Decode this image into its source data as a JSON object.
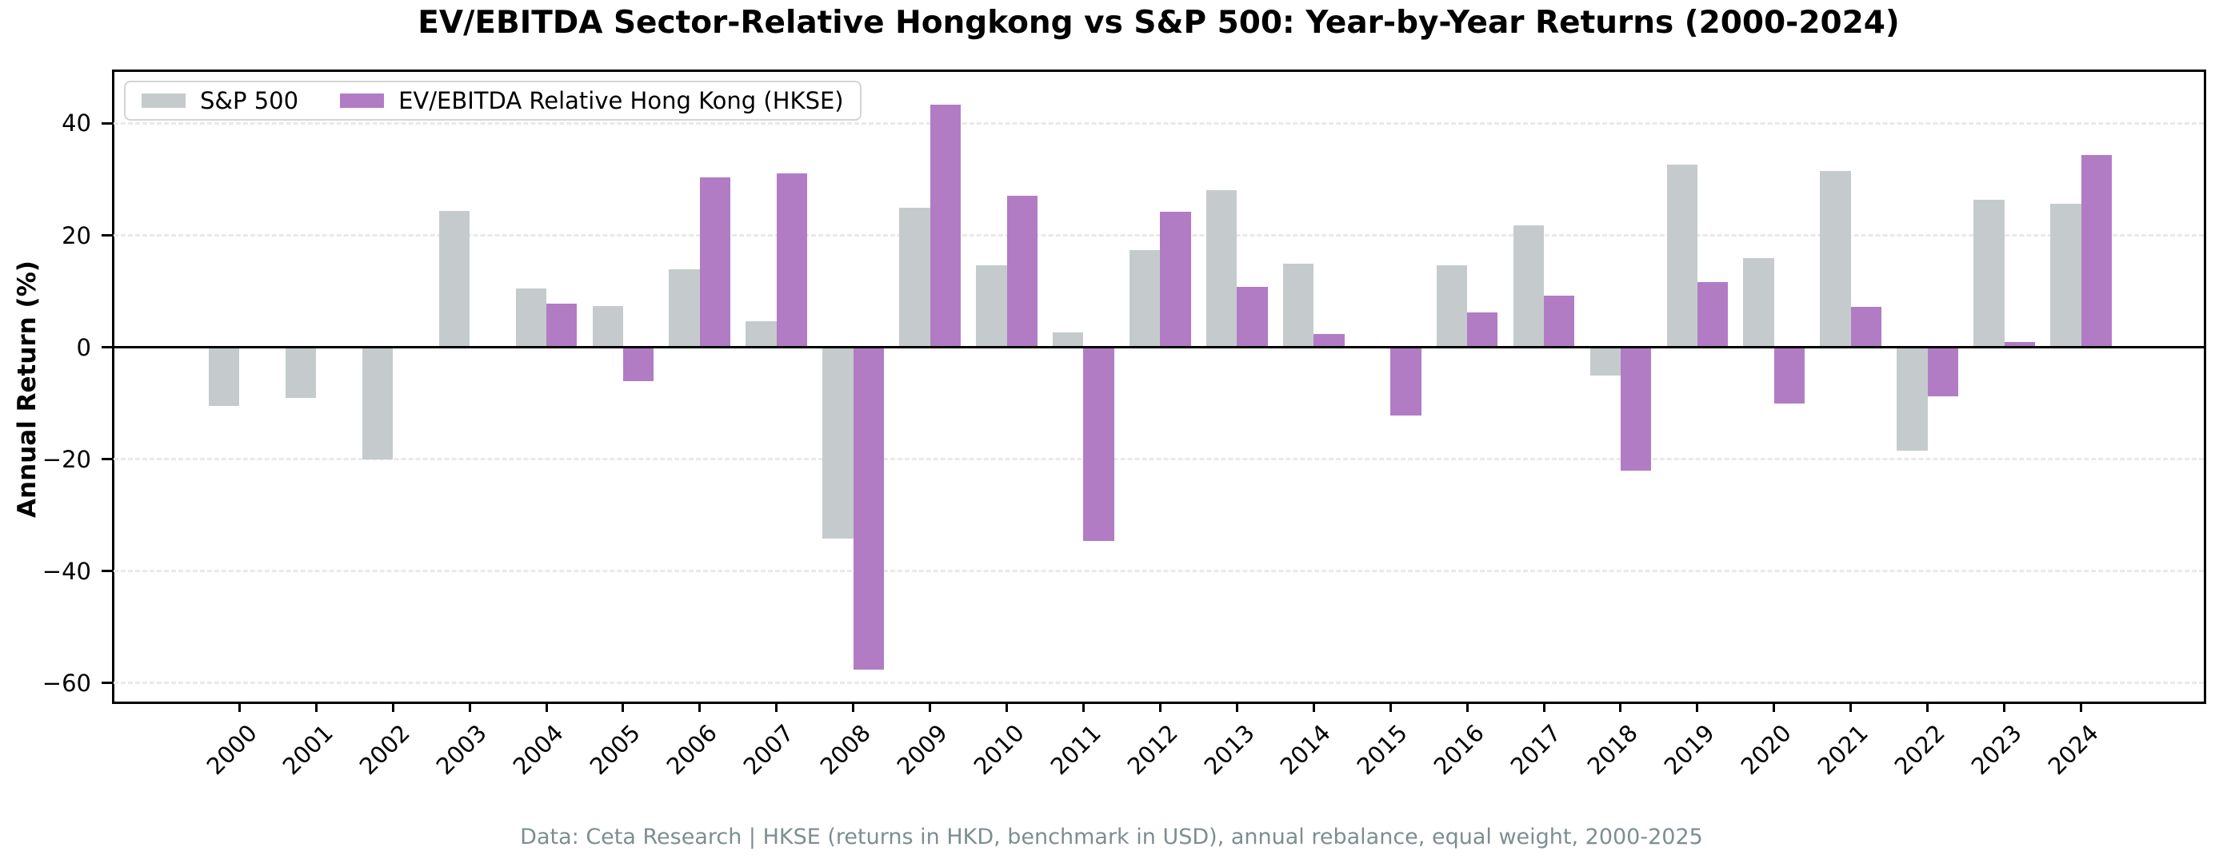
{
  "title": "EV/EBITDA Sector-Relative Hongkong vs S&P 500: Year-by-Year Returns (2000-2024)",
  "y_axis": {
    "label": "Annual Return (%)"
  },
  "legend": [
    {
      "label": "S&P 500",
      "color": "#c5cbcc"
    },
    {
      "label": "EV/EBITDA Relative Hong Kong (HKSE)",
      "color": "#b17cc4"
    }
  ],
  "footer": "Data: Ceta Research | HKSE (returns in HKD, benchmark in USD), annual rebalance, equal weight, 2000-2025",
  "chart_data": {
    "type": "bar",
    "title": "EV/EBITDA Sector-Relative Hongkong vs S&P 500: Year-by-Year Returns (2000-2024)",
    "xlabel": "",
    "ylabel": "Annual Return (%)",
    "categories": [
      "2000",
      "2001",
      "2002",
      "2003",
      "2004",
      "2005",
      "2006",
      "2007",
      "2008",
      "2009",
      "2010",
      "2011",
      "2012",
      "2013",
      "2014",
      "2015",
      "2016",
      "2017",
      "2018",
      "2019",
      "2020",
      "2021",
      "2022",
      "2023",
      "2024"
    ],
    "series": [
      {
        "name": "S&P 500",
        "color": "#c5cbcc",
        "values": [
          -10.5,
          -9.0,
          -20.0,
          24.4,
          10.5,
          7.4,
          14.0,
          4.6,
          -34.2,
          25.0,
          14.6,
          2.6,
          17.3,
          28.0,
          15.0,
          0.0,
          14.6,
          21.8,
          -5.0,
          32.6,
          16.0,
          31.5,
          -18.5,
          26.3,
          25.7
        ]
      },
      {
        "name": "EV/EBITDA Relative Hong Kong (HKSE)",
        "color": "#b17cc4",
        "values": [
          null,
          null,
          null,
          null,
          7.8,
          -6.0,
          30.3,
          31.0,
          -57.6,
          43.4,
          27.0,
          -34.6,
          24.2,
          10.8,
          2.4,
          -12.2,
          6.2,
          9.2,
          -22.0,
          11.6,
          -10.0,
          7.2,
          -8.8,
          1.0,
          34.3
        ]
      }
    ],
    "yticks": [
      40,
      20,
      0,
      -20,
      -40,
      -60
    ],
    "ylim": [
      -63.3,
      49.2
    ],
    "grid": "horizontal-dashed",
    "legend_position": "upper-left",
    "bar_width": 0.4
  }
}
